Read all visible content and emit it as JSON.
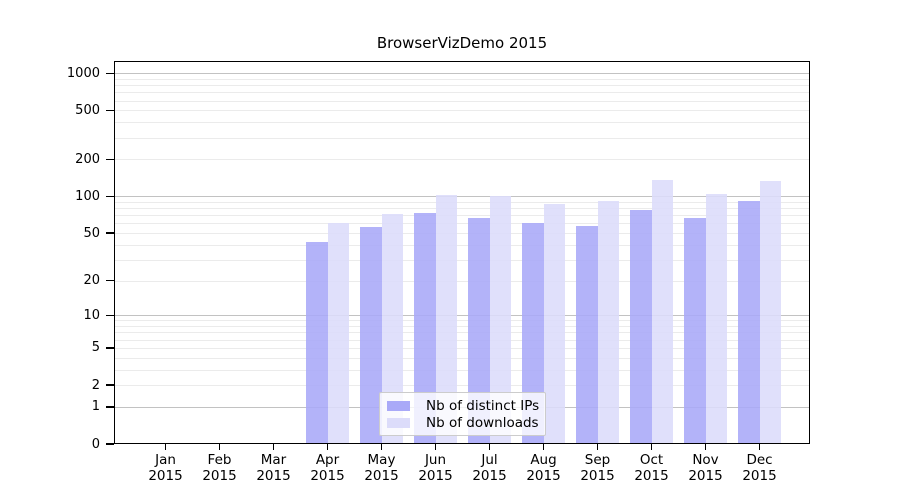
{
  "chart_data": {
    "type": "bar",
    "title": "BrowserVizDemo 2015",
    "x_months": [
      "Jan",
      "Feb",
      "Mar",
      "Apr",
      "May",
      "Jun",
      "Jul",
      "Aug",
      "Sep",
      "Oct",
      "Nov",
      "Dec"
    ],
    "x_year": "2015",
    "categories": [
      "Jan 2015",
      "Feb 2015",
      "Mar 2015",
      "Apr 2015",
      "May 2015",
      "Jun 2015",
      "Jul 2015",
      "Aug 2015",
      "Sep 2015",
      "Oct 2015",
      "Nov 2015",
      "Dec 2015"
    ],
    "series": [
      {
        "name": "Nb of distinct IPs",
        "color": "#a9a9f8",
        "values": [
          0,
          0,
          0,
          42,
          56,
          73,
          67,
          61,
          57,
          78,
          67,
          92
        ]
      },
      {
        "name": "Nb of downloads",
        "color": "#dcdcfa",
        "values": [
          0,
          0,
          0,
          60,
          72,
          102,
          101,
          86,
          91,
          135,
          104,
          133
        ]
      }
    ],
    "y_ticks": [
      0,
      1,
      2,
      5,
      10,
      20,
      50,
      100,
      200,
      500,
      1000
    ],
    "y_scale": "log10(value+1)",
    "ylim": [
      0,
      1000
    ],
    "xlabel": "",
    "ylabel": "",
    "grid": "horizontal major lines at powers of 10, faint minor log lines",
    "legend_position": "inside-bottom-center"
  },
  "colors": {
    "major_grid": "#c2c2c2",
    "minor_grid": "#ebebeb",
    "axis": "#000000",
    "legend_border": "#cccccc"
  }
}
